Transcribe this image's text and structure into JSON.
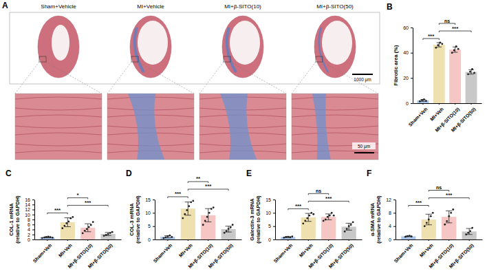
{
  "figure": {
    "panel_a": {
      "letter": "A",
      "groups": [
        "Sham+Vehicle",
        "MI+Vehicle",
        "MI+β-SITO(10)",
        "MI+β-SITO(50)"
      ],
      "scale_bars": [
        "1000 μm",
        "50 μm"
      ]
    }
  },
  "chart_data": [
    {
      "type": "bar",
      "panel": "B",
      "y_label": [
        "Fibrotic area (%)"
      ],
      "categories": [
        "Sham+Veh",
        "MI+Veh",
        "MI+β-SITO(10)",
        "MI+β-SITO(50)"
      ],
      "values": [
        2.2,
        46.3,
        42.5,
        24.8
      ],
      "errors": [
        0.7,
        1.7,
        2.1,
        1.7
      ],
      "points": [
        [
          1.5,
          2.5,
          3,
          1.8
        ],
        [
          44,
          46,
          48,
          47
        ],
        [
          40,
          42,
          45,
          43
        ],
        [
          23,
          25,
          27,
          24
        ]
      ],
      "colors": [
        "#a9c4e8",
        "#efe0b0",
        "#f5c6c4",
        "#c8c8c8"
      ],
      "ylim": [
        0,
        60
      ],
      "yticks": [
        0,
        20,
        40,
        60
      ],
      "significance": [
        {
          "from": 0,
          "to": 1,
          "label": "***"
        },
        {
          "from": 1,
          "to": 3,
          "label": "***"
        },
        {
          "from": 1,
          "to": 2,
          "label": "ns"
        }
      ]
    },
    {
      "type": "bar",
      "panel": "C",
      "y_label": [
        "COL-1 mRNA",
        "(relative to GAPDH)"
      ],
      "categories": [
        "Sham+Veh",
        "MI+Veh",
        "MI+β-SITO(10)",
        "MI+β-SITO(50)"
      ],
      "values": [
        0.85,
        6.9,
        4.7,
        2.2
      ],
      "errors": [
        0.2,
        1.8,
        1.6,
        0.6
      ],
      "points": [
        [
          0.6,
          0.8,
          1.0,
          1.1,
          0.9,
          0.7
        ],
        [
          4.5,
          5.5,
          6.5,
          7.2,
          8.5,
          9.0
        ],
        [
          2.5,
          3.5,
          4.2,
          5.0,
          5.8,
          7.0
        ],
        [
          1.5,
          1.8,
          2.2,
          2.6,
          3.0
        ]
      ],
      "colors": [
        "#a9c4e8",
        "#efe0b0",
        "#f5c6c4",
        "#c8c8c8"
      ],
      "ylim": [
        0,
        16
      ],
      "yticks": [
        0,
        2,
        4,
        6,
        8,
        10,
        12,
        14,
        16
      ],
      "significance": [
        {
          "from": 0,
          "to": 1,
          "label": "***"
        },
        {
          "from": 1,
          "to": 3,
          "label": "***"
        },
        {
          "from": 1,
          "to": 2,
          "label": "*"
        }
      ]
    },
    {
      "type": "bar",
      "panel": "D",
      "y_label": [
        "COL-3 mRNA",
        "(relative to GAPDH)"
      ],
      "categories": [
        "Sham+Veh",
        "MI+Veh",
        "MI+β-SITO(10)",
        "MI+β-SITO(50)"
      ],
      "values": [
        1.0,
        11.6,
        9.1,
        3.9
      ],
      "errors": [
        0.4,
        2.5,
        2.5,
        1.1
      ],
      "points": [
        [
          0.5,
          0.8,
          1.2,
          1.5,
          0.9
        ],
        [
          8,
          9.5,
          11,
          12.5,
          14,
          14.5
        ],
        [
          5.5,
          7,
          8.5,
          10,
          11.5,
          12
        ],
        [
          2.5,
          3.2,
          4,
          4.5,
          5.5
        ]
      ],
      "colors": [
        "#a9c4e8",
        "#efe0b0",
        "#f5c6c4",
        "#c8c8c8"
      ],
      "ylim": [
        0,
        15
      ],
      "yticks": [
        0,
        5,
        10,
        15
      ],
      "significance": [
        {
          "from": 0,
          "to": 1,
          "label": "***"
        },
        {
          "from": 1,
          "to": 3,
          "label": "***"
        },
        {
          "from": 1,
          "to": 2,
          "label": "**"
        }
      ]
    },
    {
      "type": "bar",
      "panel": "E",
      "y_label": [
        "Galectin-3 mRNA",
        "(relative to GAPDH)"
      ],
      "categories": [
        "Sham+Veh",
        "MI+Veh",
        "MI+β-SITO(10)",
        "MI+β-SITO(50)"
      ],
      "values": [
        0.9,
        8.3,
        8.5,
        4.8
      ],
      "errors": [
        0.15,
        1.5,
        1.1,
        1.3
      ],
      "points": [
        [
          0.7,
          0.9,
          1.0,
          0.8,
          1.1
        ],
        [
          6,
          7,
          8,
          9,
          10,
          9.5
        ],
        [
          7,
          7.5,
          8.5,
          9,
          10,
          9
        ],
        [
          3,
          4,
          5,
          5.5,
          6.5
        ]
      ],
      "colors": [
        "#a9c4e8",
        "#efe0b0",
        "#f5c6c4",
        "#c8c8c8"
      ],
      "ylim": [
        0,
        15
      ],
      "yticks": [
        0,
        5,
        10,
        15
      ],
      "significance": [
        {
          "from": 0,
          "to": 1,
          "label": "***"
        },
        {
          "from": 1,
          "to": 3,
          "label": "***"
        },
        {
          "from": 1,
          "to": 2,
          "label": "ns"
        }
      ]
    },
    {
      "type": "bar",
      "panel": "F",
      "y_label": [
        "α-SMA mRNA",
        "(relative to GAPDH)"
      ],
      "categories": [
        "Sham+Veh",
        "MI+Veh",
        "MI+β-SITO(10)",
        "MI+β-SITO(50)"
      ],
      "values": [
        0.95,
        6.0,
        6.8,
        2.4
      ],
      "errors": [
        0.1,
        1.6,
        1.8,
        0.9
      ],
      "points": [
        [
          0.8,
          1.0,
          1.1,
          0.9
        ],
        [
          4,
          5,
          6,
          7,
          8
        ],
        [
          4.5,
          5.5,
          7,
          8,
          9
        ],
        [
          1.5,
          2,
          2.5,
          3.5
        ]
      ],
      "colors": [
        "#a9c4e8",
        "#efe0b0",
        "#f5c6c4",
        "#c8c8c8"
      ],
      "ylim": [
        0,
        12
      ],
      "yticks": [
        0,
        4,
        8,
        12
      ],
      "significance": [
        {
          "from": 0,
          "to": 1,
          "label": "***"
        },
        {
          "from": 1,
          "to": 3,
          "label": "***"
        },
        {
          "from": 1,
          "to": 2,
          "label": "ns"
        }
      ]
    }
  ]
}
